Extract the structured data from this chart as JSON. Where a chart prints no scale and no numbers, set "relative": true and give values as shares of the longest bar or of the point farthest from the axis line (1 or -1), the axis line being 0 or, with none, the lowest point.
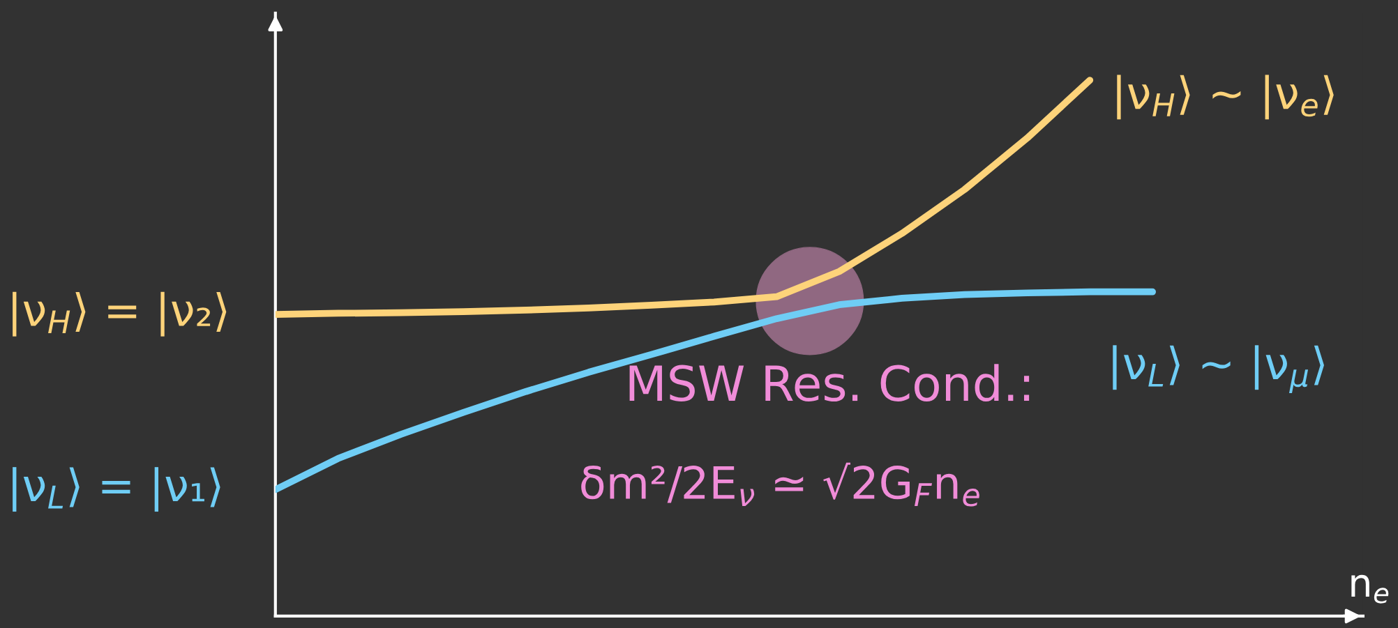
{
  "chart_data": {
    "type": "line",
    "relative": true,
    "xlabel": "n$_{e}$",
    "legend": false,
    "marker": "none",
    "line_style": "solid",
    "categories": [
      null,
      null,
      null,
      null,
      null,
      null,
      null,
      null,
      null,
      null,
      null,
      null,
      null,
      null,
      null
    ],
    "series": [
      {
        "name": "|ν$_{H}$⟩ = |ν₂⟩",
        "color": "#fdd37a",
        "values": [
          0.563,
          0.565,
          0.566,
          0.568,
          0.571,
          0.575,
          0.58,
          0.586,
          0.596,
          0.643,
          0.714,
          0.796,
          0.892,
          1,
          null
        ]
      },
      {
        "name": "|ν$_{L}$⟩ = |ν₁⟩",
        "color": "#6fcdf5",
        "values": [
          0.236,
          0.294,
          0.339,
          0.38,
          0.419,
          0.455,
          0.488,
          0.522,
          0.555,
          0.581,
          0.593,
          0.6,
          0.603,
          0.605,
          0.605
        ]
      }
    ],
    "annotations": [
      "|ν$_{H}$⟩ ∼ |ν$_{e}$⟩",
      "|ν$_{L}$⟩ ∼ |ν$_{μ}$⟩",
      "MSW Res. Cond.:",
      "δm²/2E$_{ν}$ ≃ √2G$_{F}$n$_{e}$"
    ]
  }
}
